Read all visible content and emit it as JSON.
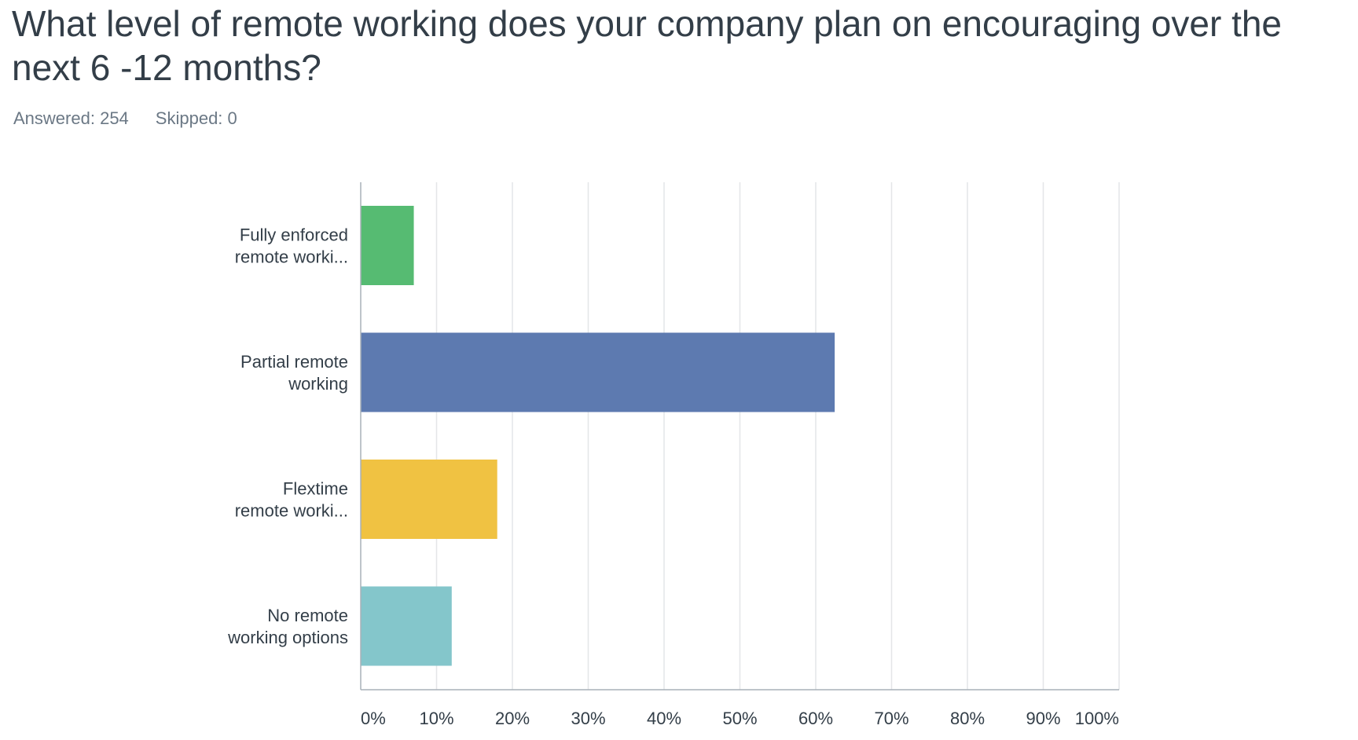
{
  "question": {
    "title": "What level of remote working does your company plan on encouraging over the next 6 -12 months?"
  },
  "stats": {
    "answered_label": "Answered:",
    "answered_value": "254",
    "skipped_label": "Skipped:",
    "skipped_value": "0"
  },
  "chart_data": {
    "type": "bar",
    "orientation": "horizontal",
    "categories": [
      [
        "Fully enforced",
        "remote worki..."
      ],
      [
        "Partial remote",
        "working"
      ],
      [
        "Flextime",
        "remote worki..."
      ],
      [
        "No remote",
        "working options"
      ]
    ],
    "values": [
      7,
      62.5,
      18,
      12
    ],
    "colors": [
      "#56bb72",
      "#5d7ab0",
      "#f0c242",
      "#84c6cb"
    ],
    "xlim": [
      0,
      100
    ],
    "ticks": [
      0,
      10,
      20,
      30,
      40,
      50,
      60,
      70,
      80,
      90,
      100
    ],
    "tick_labels": [
      "0%",
      "10%",
      "20%",
      "30%",
      "40%",
      "50%",
      "60%",
      "70%",
      "80%",
      "90%",
      "100%"
    ],
    "grid": true,
    "title": "",
    "xlabel": "",
    "ylabel": ""
  }
}
